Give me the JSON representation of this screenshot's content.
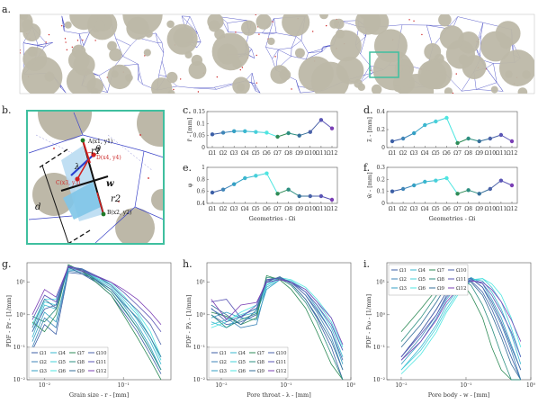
{
  "panel_labels": [
    "a.",
    "b.",
    "c.",
    "d.",
    "e.",
    "f.",
    "g.",
    "h.",
    "i."
  ],
  "geometry_labels": [
    "Ω1",
    "Ω2",
    "Ω3",
    "Ω4",
    "Ω5",
    "Ω6",
    "Ω7",
    "Ω8",
    "Ω9",
    "Ω10",
    "Ω11",
    "Ω12"
  ],
  "series_colors": [
    "#3c5fa6",
    "#3f86b8",
    "#34a0c4",
    "#3ab7cf",
    "#46d0da",
    "#4fe6e1",
    "#2e8b57",
    "#2d8f80",
    "#356f9a",
    "#4a62a8",
    "#5a55b5",
    "#7b3fb5"
  ],
  "panel_b": {
    "point_A": "A(x1, y1)",
    "point_B": "B(x2, y2)",
    "point_C": "C(x3, y3)",
    "point_D": "D(x4, y4)",
    "sym_r1": "r1",
    "sym_r2": "r2",
    "sym_w": "w",
    "sym_lambda": "λ",
    "sym_theta": "θ",
    "sym_d": "d"
  },
  "chart_data": [
    {
      "id": "c",
      "type": "line",
      "x": [
        "Ω1",
        "Ω2",
        "Ω3",
        "Ω4",
        "Ω5",
        "Ω6",
        "Ω7",
        "Ω8",
        "Ω9",
        "Ω10",
        "Ω11",
        "Ω12"
      ],
      "values": [
        0.055,
        0.062,
        0.068,
        0.068,
        0.065,
        0.062,
        0.045,
        0.06,
        0.05,
        0.065,
        0.115,
        0.08
      ],
      "ylim": [
        0,
        0.15
      ],
      "yticks": [
        "0",
        "0.05",
        "0.1",
        "0.15"
      ],
      "ylabel": "r̄ - [mm]",
      "xlabel": ""
    },
    {
      "id": "d",
      "type": "line",
      "x": [
        "Ω1",
        "Ω2",
        "Ω3",
        "Ω4",
        "Ω5",
        "Ω6",
        "Ω7",
        "Ω8",
        "Ω9",
        "Ω10",
        "Ω11",
        "Ω12"
      ],
      "values": [
        0.07,
        0.1,
        0.16,
        0.25,
        0.29,
        0.33,
        0.05,
        0.1,
        0.07,
        0.1,
        0.14,
        0.07
      ],
      "ylim": [
        0,
        0.4
      ],
      "yticks": [
        "0",
        "0.2",
        "0.4"
      ],
      "ylabel": "λ̄ - [mm]",
      "xlabel": ""
    },
    {
      "id": "e",
      "type": "line",
      "x": [
        "Ω1",
        "Ω2",
        "Ω3",
        "Ω4",
        "Ω5",
        "Ω6",
        "Ω7",
        "Ω8",
        "Ω9",
        "Ω10",
        "Ω11",
        "Ω12"
      ],
      "values": [
        0.58,
        0.63,
        0.72,
        0.82,
        0.86,
        0.9,
        0.56,
        0.63,
        0.52,
        0.52,
        0.52,
        0.46
      ],
      "ylim": [
        0.4,
        1
      ],
      "yticks": [
        "0.4",
        "0.6",
        "0.8",
        "1"
      ],
      "ylabel": "φ",
      "xlabel": "Geometries - Ωi"
    },
    {
      "id": "f",
      "type": "line",
      "x": [
        "Ω1",
        "Ω2",
        "Ω3",
        "Ω4",
        "Ω5",
        "Ω6",
        "Ω7",
        "Ω8",
        "Ω9",
        "Ω10",
        "Ω11",
        "Ω12"
      ],
      "values": [
        0.1,
        0.12,
        0.15,
        0.18,
        0.19,
        0.21,
        0.08,
        0.11,
        0.08,
        0.12,
        0.19,
        0.15
      ],
      "ylim": [
        0,
        0.3
      ],
      "yticks": [
        "0",
        "0.1",
        "0.2",
        "0.3"
      ],
      "ylabel": "w̄ - [mm]",
      "xlabel": "Geometries - Ωi"
    },
    {
      "id": "g",
      "type": "line",
      "x_scale": "log",
      "y_scale": "log",
      "xlim": [
        0.006,
        0.4
      ],
      "ylim": [
        0.01,
        40
      ],
      "xticks": [
        "10⁻²",
        "10⁻¹"
      ],
      "yticks": [
        "10⁻²",
        "10⁻¹",
        "10⁰",
        "10¹"
      ],
      "xlabel": "Grain size - r - [mm]",
      "ylabel": "PDF - Pr - [1/mm]",
      "legend": [
        "Ω1",
        "Ω2",
        "Ω3",
        "Ω4",
        "Ω5",
        "Ω6",
        "Ω7",
        "Ω8",
        "Ω9",
        "Ω10",
        "Ω11",
        "Ω12"
      ],
      "legend_position": "bottom-left",
      "series_x": [
        0.007,
        0.01,
        0.014,
        0.02,
        0.03,
        0.045,
        0.07,
        0.1,
        0.15,
        0.22,
        0.3
      ],
      "series": [
        {
          "values": [
            0.08,
            0.5,
            0.25,
            20,
            18,
            10,
            4,
            1.2,
            0.3,
            0.06,
            0.015
          ]
        },
        {
          "values": [
            0.1,
            0.8,
            0.4,
            22,
            20,
            11,
            5,
            1.5,
            0.4,
            0.08,
            0.02
          ]
        },
        {
          "values": [
            0.15,
            1.2,
            0.6,
            24,
            22,
            12,
            6,
            2,
            0.5,
            0.1,
            0.02
          ]
        },
        {
          "values": [
            0.2,
            2,
            1.5,
            26,
            24,
            13,
            7,
            2.5,
            0.7,
            0.15,
            0.03
          ]
        },
        {
          "values": [
            0.3,
            2.5,
            2,
            28,
            25,
            14,
            8,
            3,
            1,
            0.2,
            0.04
          ]
        },
        {
          "values": [
            0.5,
            3,
            3,
            30,
            26,
            15,
            9,
            4,
            1.2,
            0.3,
            0.05
          ]
        },
        {
          "values": [
            0.6,
            0.3,
            1,
            35,
            22,
            10,
            4,
            1,
            0.2,
            0.04,
            0.01
          ]
        },
        {
          "values": [
            0.9,
            0.6,
            1.5,
            32,
            24,
            12,
            5,
            1.6,
            0.4,
            0.08,
            0.02
          ]
        },
        {
          "values": [
            0.4,
            3,
            1.6,
            29,
            18,
            12,
            6,
            2.2,
            0.8,
            0.2,
            0.05
          ]
        },
        {
          "values": [
            0.3,
            1.5,
            2,
            30,
            26,
            16,
            8,
            3.5,
            1.4,
            0.5,
            0.12
          ]
        },
        {
          "values": [
            0.7,
            4,
            2.5,
            32,
            24,
            16,
            10,
            5,
            2,
            0.8,
            0.3
          ]
        },
        {
          "values": [
            1,
            6,
            3.5,
            30,
            22,
            15,
            10,
            6,
            3,
            1.2,
            0.5
          ]
        }
      ]
    },
    {
      "id": "h",
      "type": "line",
      "x_scale": "log",
      "y_scale": "log",
      "xlim": [
        0.006,
        1
      ],
      "ylim": [
        0.01,
        40
      ],
      "xticks": [
        "10⁻²",
        "10⁻¹",
        "10⁰"
      ],
      "yticks": [
        "10⁻²",
        "10⁻¹",
        "10⁰",
        "10¹"
      ],
      "xlabel": "Pore throat - λ - [mm]",
      "ylabel": "PDF - Pλ - [1/mm]",
      "legend": [
        "Ω1",
        "Ω2",
        "Ω3",
        "Ω4",
        "Ω5",
        "Ω6",
        "Ω7",
        "Ω8",
        "Ω9",
        "Ω10",
        "Ω11",
        "Ω12"
      ],
      "legend_position": "bottom-left",
      "series_x": [
        0.007,
        0.012,
        0.02,
        0.035,
        0.05,
        0.08,
        0.12,
        0.2,
        0.3,
        0.5,
        0.75
      ],
      "series": [
        {
          "values": [
            1,
            0.5,
            0.6,
            1,
            12,
            14,
            9,
            3,
            0.8,
            0.1,
            0.01
          ]
        },
        {
          "values": [
            1.5,
            0.8,
            0.4,
            0.5,
            8,
            14,
            10,
            4,
            1.2,
            0.2,
            0.02
          ]
        },
        {
          "values": [
            0.8,
            1.2,
            0.8,
            0.7,
            6,
            12,
            11,
            5,
            1.6,
            0.3,
            0.03
          ]
        },
        {
          "values": [
            0.6,
            0.4,
            0.9,
            1.2,
            7,
            12,
            10,
            5,
            2,
            0.4,
            0.05
          ]
        },
        {
          "values": [
            0.5,
            0.7,
            1,
            1.5,
            8,
            13,
            11,
            6,
            2.5,
            0.6,
            0.08
          ]
        },
        {
          "values": [
            0.4,
            0.6,
            1.2,
            2,
            9,
            14,
            12,
            7,
            3,
            0.8,
            0.1
          ]
        },
        {
          "values": [
            1.2,
            0.9,
            0.5,
            0.8,
            16,
            12,
            6,
            1.6,
            0.3,
            0.03,
            0.01
          ]
        },
        {
          "values": [
            1,
            0.4,
            0.7,
            1.1,
            14,
            13,
            8,
            2.4,
            0.6,
            0.06,
            0.01
          ]
        },
        {
          "values": [
            2,
            1,
            0.5,
            1.4,
            10,
            15,
            9,
            3,
            0.9,
            0.15,
            0.02
          ]
        },
        {
          "values": [
            1.6,
            0.6,
            0.9,
            1.6,
            11,
            14,
            10,
            4,
            1.4,
            0.3,
            0.04
          ]
        },
        {
          "values": [
            2.5,
            3,
            0.8,
            2,
            12,
            13,
            10,
            5,
            2,
            0.5,
            0.08
          ]
        },
        {
          "values": [
            3,
            0.7,
            2,
            2.4,
            10,
            12,
            10,
            6,
            2.5,
            0.8,
            0.12
          ]
        }
      ]
    },
    {
      "id": "i",
      "type": "line",
      "x_scale": "log",
      "y_scale": "log",
      "xlim": [
        0.006,
        1
      ],
      "ylim": [
        0.01,
        40
      ],
      "xticks": [
        "10⁻²",
        "10⁻¹",
        "10⁰"
      ],
      "yticks": [
        "10⁻²",
        "10⁻¹",
        "10⁰",
        "10¹"
      ],
      "xlabel": "Pore body - w - [mm]",
      "ylabel": "PDF - Pω - [1/mm]",
      "legend": [
        "Ω1",
        "Ω2",
        "Ω3",
        "Ω4",
        "Ω5",
        "Ω6",
        "Ω7",
        "Ω8",
        "Ω9",
        "Ω10",
        "Ω11",
        "Ω12"
      ],
      "legend_position": "top-left",
      "series_x": [
        0.01,
        0.02,
        0.035,
        0.05,
        0.08,
        0.12,
        0.18,
        0.25,
        0.35,
        0.5,
        0.7
      ],
      "series": [
        {
          "values": [
            0.05,
            0.3,
            1.5,
            5,
            12,
            11,
            5,
            1.5,
            0.3,
            0.05,
            0.01
          ]
        },
        {
          "values": [
            0.04,
            0.2,
            1,
            4,
            11,
            13,
            7,
            2,
            0.5,
            0.08,
            0.01
          ]
        },
        {
          "values": [
            0.03,
            0.15,
            0.8,
            3,
            9,
            14,
            9,
            3,
            0.8,
            0.12,
            0.02
          ]
        },
        {
          "values": [
            0.02,
            0.1,
            0.5,
            2,
            7,
            13,
            11,
            5,
            1.5,
            0.25,
            0.03
          ]
        },
        {
          "values": [
            0.02,
            0.08,
            0.4,
            1.5,
            6,
            12,
            13,
            7,
            2.5,
            0.4,
            0.05
          ]
        },
        {
          "values": [
            0.015,
            0.06,
            0.3,
            1.2,
            5,
            11,
            13,
            9,
            4,
            0.8,
            0.1
          ]
        },
        {
          "values": [
            0.3,
            1.5,
            6,
            14,
            12,
            4,
            0.8,
            0.1,
            0.02,
            0.01,
            0.01
          ]
        },
        {
          "values": [
            0.15,
            0.8,
            4,
            10,
            14,
            8,
            2,
            0.4,
            0.06,
            0.01,
            0.01
          ]
        },
        {
          "values": [
            0.1,
            0.5,
            2.5,
            8,
            14,
            10,
            4,
            1,
            0.2,
            0.03,
            0.01
          ]
        },
        {
          "values": [
            0.05,
            0.3,
            1.5,
            5,
            12,
            13,
            7,
            2.5,
            0.6,
            0.1,
            0.02
          ]
        },
        {
          "values": [
            0.05,
            0.25,
            1,
            3.5,
            9,
            12,
            9,
            4,
            1.2,
            0.3,
            0.05
          ]
        },
        {
          "values": [
            0.04,
            0.15,
            0.7,
            2.5,
            7,
            11,
            10,
            6,
            2.5,
            0.7,
            0.15
          ]
        }
      ]
    }
  ]
}
